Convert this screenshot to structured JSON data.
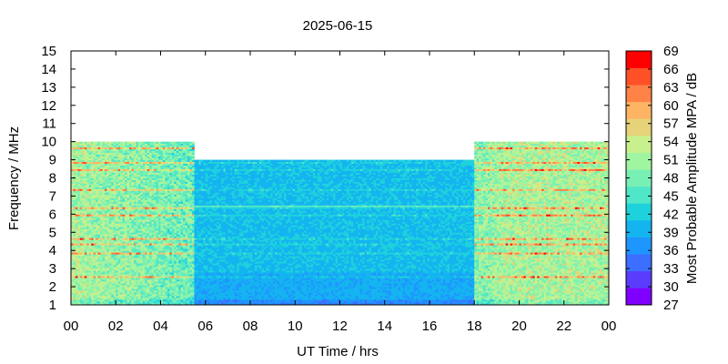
{
  "chart_data": {
    "type": "heatmap",
    "title": "2025-06-15",
    "xlabel": "UT Time / hrs",
    "ylabel": "Frequency / MHz",
    "colorbar_label": "Most Probable Amplitude MPA / dB",
    "xlim": [
      0,
      24
    ],
    "ylim": [
      1,
      15
    ],
    "x_ticks": [
      "00",
      "02",
      "04",
      "06",
      "08",
      "10",
      "12",
      "14",
      "16",
      "18",
      "20",
      "22",
      "00"
    ],
    "y_ticks": [
      "1",
      "2",
      "3",
      "4",
      "5",
      "6",
      "7",
      "8",
      "9",
      "10",
      "11",
      "12",
      "13",
      "14",
      "15"
    ],
    "colorbar_ticks": [
      "27",
      "30",
      "33",
      "36",
      "39",
      "42",
      "45",
      "48",
      "51",
      "54",
      "57",
      "60",
      "63",
      "66",
      "69"
    ],
    "color_range": [
      27,
      69
    ],
    "colors": [
      "#7f00ff",
      "#5a3cff",
      "#3c6eff",
      "#1e96ff",
      "#14b4f0",
      "#1ed2dc",
      "#50e6c8",
      "#78f0b4",
      "#a0f5a0",
      "#c8f08c",
      "#e6d278",
      "#ffb464",
      "#ff8246",
      "#ff5028",
      "#ff0000"
    ],
    "coverage": [
      {
        "start": 0,
        "end": 5.5,
        "max_freq": 10
      },
      {
        "start": 5.5,
        "end": 18,
        "max_freq": 9
      },
      {
        "start": 18,
        "end": 24,
        "max_freq": 10
      }
    ]
  }
}
